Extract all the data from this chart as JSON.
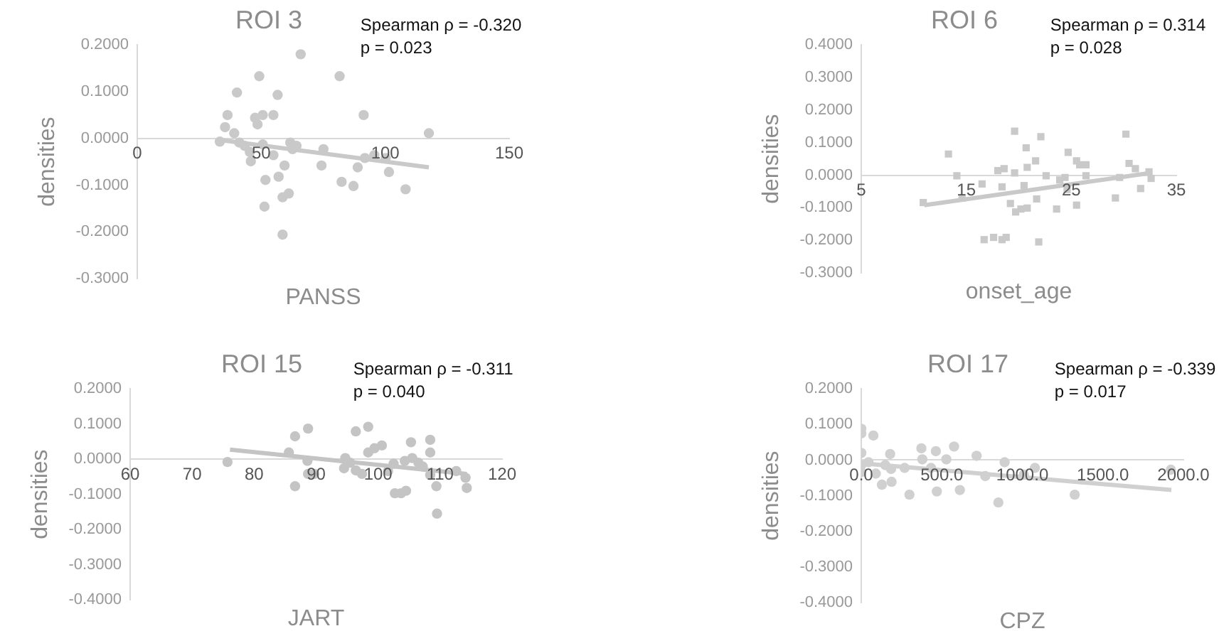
{
  "chart_data": [
    {
      "type": "scatter",
      "title": "ROI 3",
      "xlabel": "PANSS",
      "ylabel": "densities",
      "marker": "circle",
      "annotations": [
        "Spearman ρ = -0.320",
        "p = 0.023"
      ],
      "xlim": [
        0,
        150
      ],
      "xticks": [
        0,
        50,
        100,
        150
      ],
      "ylim": [
        -0.3,
        0.2
      ],
      "yticks": [
        {
          "value": -0.3,
          "label": "-0.3000"
        },
        {
          "value": -0.2,
          "label": "-0.2000"
        },
        {
          "value": -0.1,
          "label": "-0.1000"
        },
        {
          "value": 0,
          "label": "0.0000"
        },
        {
          "value": 0.1,
          "label": "0.1000"
        },
        {
          "value": 0.2,
          "label": "0.2000"
        }
      ],
      "series": [
        {
          "type": "scatter",
          "color": "#c9c9c9",
          "x": [
            33.3,
            35.4,
            36.4,
            39.1,
            40.2,
            41.2,
            43.3,
            45.4,
            45.8,
            47.5,
            48.5,
            49.2,
            50.6,
            50.6,
            51.7,
            51.3,
            54.9,
            54.9,
            56.6,
            57,
            58.6,
            58.6,
            59.4,
            61.1,
            61.7,
            62.6,
            64.2,
            65.9,
            74.3,
            75.1,
            81.6,
            82.4,
            87.2,
            88.9,
            91.3,
            91.8,
            95.6,
            100.2,
            101.5,
            108.2,
            117.6
          ],
          "values": [
            -0.007,
            0.024,
            0.05,
            0.011,
            0.098,
            -0.009,
            -0.016,
            -0.029,
            -0.049,
            0.044,
            0.03,
            0.133,
            0.05,
            -0.013,
            -0.089,
            -0.146,
            0.05,
            -0.036,
            0.093,
            -0.082,
            -0.126,
            -0.206,
            -0.058,
            -0.118,
            -0.009,
            -0.023,
            -0.016,
            0.18,
            -0.058,
            -0.023,
            0.133,
            -0.093,
            -0.102,
            -0.062,
            0.05,
            -0.042,
            -0.036,
            -0.042,
            -0.072,
            -0.109,
            0.011
          ]
        },
        {
          "type": "line",
          "color": "#c9c9c9",
          "marker": "none",
          "x": [
            32.8,
            117.6
          ],
          "values": [
            -0.003,
            -0.062
          ]
        }
      ]
    },
    {
      "type": "scatter",
      "title": "ROI 6",
      "xlabel": "onset_age",
      "ylabel": "densities",
      "marker": "square",
      "annotations": [
        "Spearman ρ = 0.314",
        "p = 0.028"
      ],
      "xlim": [
        5,
        35
      ],
      "xticks": [
        5,
        15,
        25,
        35
      ],
      "ylim": [
        -0.3,
        0.4
      ],
      "yticks": [
        {
          "value": -0.3,
          "label": "-0.3000"
        },
        {
          "value": -0.2,
          "label": "-0.2000"
        },
        {
          "value": -0.1,
          "label": "-0.1000"
        },
        {
          "value": 0,
          "label": "0.0000"
        },
        {
          "value": 0.1,
          "label": "0.1000"
        },
        {
          "value": 0.2,
          "label": "0.2000"
        },
        {
          "value": 0.3,
          "label": "0.3000"
        },
        {
          "value": 0.4,
          "label": "0.4000"
        }
      ],
      "series": [
        {
          "type": "scatter",
          "color": "#c9c9c9",
          "x": [
            10.9,
            13.3,
            14.1,
            14.6,
            16.5,
            16.7,
            17.6,
            18.0,
            18.4,
            18.6,
            18.4,
            18.8,
            19.2,
            19.6,
            19.6,
            19.7,
            20.2,
            20.5,
            20.7,
            20.8,
            20.8,
            21.6,
            21.9,
            22.1,
            21.7,
            22.6,
            23.6,
            23.9,
            24.4,
            24.7,
            24.6,
            25.5,
            25.5,
            25.8,
            26.4,
            26.4,
            29.2,
            29.6,
            30.2,
            30.5,
            31.1,
            31.6,
            32.4,
            32.6
          ],
          "values": [
            -0.084,
            0.065,
            -0.002,
            -0.07,
            -0.027,
            -0.198,
            -0.191,
            0.014,
            -0.036,
            0.02,
            -0.198,
            -0.191,
            -0.087,
            0.135,
            0.007,
            -0.113,
            -0.104,
            -0.032,
            0.084,
            0.024,
            -0.101,
            0.044,
            -0.205,
            0.118,
            -0.073,
            -0.002,
            -0.104,
            -0.015,
            -0.007,
            0.07,
            -0.044,
            0.044,
            -0.092,
            0.032,
            0.032,
            -0.002,
            -0.07,
            -0.007,
            0.126,
            0.036,
            0.02,
            -0.041,
            0.01,
            -0.01
          ]
        },
        {
          "type": "line",
          "color": "#c9c9c9",
          "marker": "none",
          "x": [
            11,
            32.6
          ],
          "values": [
            -0.092,
            0.007
          ]
        }
      ]
    },
    {
      "type": "scatter",
      "title": "ROI 15",
      "xlabel": "JART",
      "ylabel": "densities",
      "marker": "circle",
      "annotations": [
        "Spearman ρ = -0.311",
        "p = 0.040"
      ],
      "xlim": [
        60,
        120
      ],
      "xticks": [
        60,
        70,
        80,
        90,
        100,
        110,
        120
      ],
      "ylim": [
        -0.4,
        0.2
      ],
      "yticks": [
        {
          "value": -0.4,
          "label": "-0.4000"
        },
        {
          "value": -0.3,
          "label": "-0.3000"
        },
        {
          "value": -0.2,
          "label": "-0.2000"
        },
        {
          "value": -0.1,
          "label": "-0.1000"
        },
        {
          "value": 0,
          "label": "0.0000"
        },
        {
          "value": 0.1,
          "label": "0.1000"
        },
        {
          "value": 0.2,
          "label": "0.2000"
        }
      ],
      "series": [
        {
          "type": "scatter",
          "color": "#c4c4c4",
          "x": [
            75.7,
            85.6,
            86.6,
            86.6,
            88.7,
            88.6,
            88.7,
            89.7,
            94.7,
            94.5,
            95.5,
            96.4,
            96.4,
            97.4,
            98.4,
            98.4,
            99.4,
            100.6,
            101.6,
            102.5,
            102.7,
            103.7,
            104.5,
            104.3,
            105.3,
            105.5,
            106.5,
            107.2,
            108.4,
            108.4,
            108.4,
            109.4,
            109.5,
            112.6,
            114.1,
            114.3
          ],
          "values": [
            -0.008,
            0.019,
            0.065,
            -0.077,
            0.087,
            -0.005,
            -0.042,
            -0.042,
            0.003,
            -0.026,
            -0.01,
            0.079,
            -0.032,
            -0.042,
            0.092,
            0.019,
            0.031,
            0.039,
            -0.034,
            -0.013,
            -0.097,
            -0.097,
            -0.09,
            -0.005,
            0.048,
            0.003,
            -0.01,
            -0.021,
            0.055,
            0.019,
            -0.045,
            -0.077,
            -0.155,
            -0.034,
            -0.053,
            -0.082
          ]
        },
        {
          "type": "line",
          "color": "#c4c4c4",
          "marker": "none",
          "x": [
            76.1,
            114.3
          ],
          "values": [
            0.027,
            -0.042
          ]
        }
      ]
    },
    {
      "type": "scatter",
      "title": "ROI 17",
      "xlabel": "CPZ",
      "ylabel": "densities",
      "marker": "circle",
      "annotations": [
        "Spearman ρ = -0.339",
        "p = 0.017"
      ],
      "xlim": [
        0,
        2000
      ],
      "xticks": [
        {
          "value": 0,
          "label": "0.0"
        },
        {
          "value": 500,
          "label": "500.0"
        },
        {
          "value": 1000,
          "label": "1000.0"
        },
        {
          "value": 1500,
          "label": "1500.0"
        },
        {
          "value": 2000,
          "label": "2000.0"
        }
      ],
      "ylim": [
        -0.4,
        0.2
      ],
      "yticks": [
        {
          "value": -0.4,
          "label": "-0.4000"
        },
        {
          "value": -0.3,
          "label": "-0.3000"
        },
        {
          "value": -0.2,
          "label": "-0.2000"
        },
        {
          "value": -0.1,
          "label": "-0.1000"
        },
        {
          "value": 0,
          "label": "0.0000"
        },
        {
          "value": 0.1,
          "label": "0.1000"
        },
        {
          "value": 0.2,
          "label": "0.2000"
        }
      ],
      "series": [
        {
          "type": "scatter",
          "color": "#d0d0d0",
          "x": [
            0,
            0,
            0,
            0,
            0,
            45,
            75,
            90,
            128,
            149,
            179,
            185,
            188,
            269,
            299,
            373,
            379,
            433,
            463,
            469,
            528,
            576,
            612,
            716,
            770,
            890,
            851,
            1009,
            1078,
            1325,
            1922
          ],
          "values": [
            0.088,
            0.075,
            0.02,
            -0.014,
            -0.034,
            -0.006,
            0.069,
            -0.038,
            -0.069,
            -0.014,
            0.017,
            -0.025,
            -0.061,
            -0.022,
            -0.097,
            0.033,
            0.002,
            -0.022,
            0.025,
            -0.088,
            0.002,
            0.038,
            -0.084,
            0.012,
            -0.045,
            -0.006,
            -0.119,
            -0.041,
            -0.022,
            -0.097,
            -0.027
          ]
        },
        {
          "type": "line",
          "color": "#d0d0d0",
          "marker": "none",
          "x": [
            0,
            1925
          ],
          "values": [
            -0.009,
            -0.084
          ]
        }
      ]
    }
  ]
}
